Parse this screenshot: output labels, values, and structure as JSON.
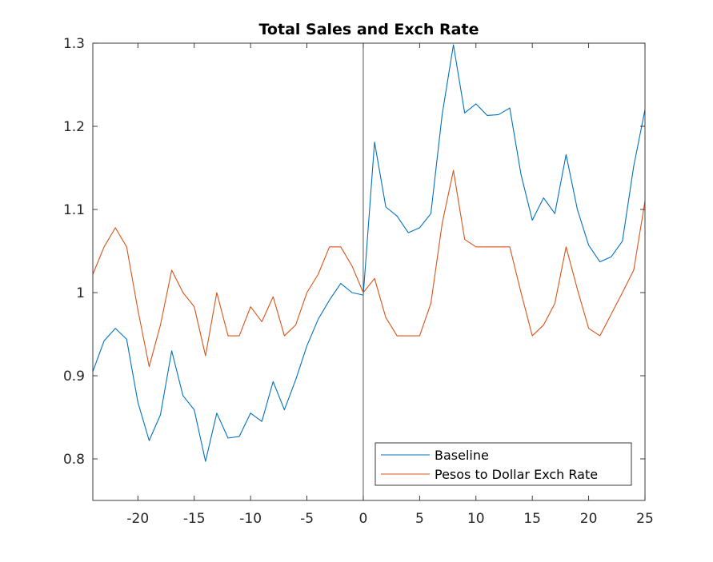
{
  "chart_data": {
    "type": "line",
    "title": "Total Sales and Exch Rate",
    "xlabel": "",
    "ylabel": "",
    "xlim": [
      -24,
      25
    ],
    "ylim": [
      0.75,
      1.3
    ],
    "xticks": [
      -20,
      -15,
      -10,
      -5,
      0,
      5,
      10,
      15,
      20,
      25
    ],
    "yticks": [
      0.8,
      0.9,
      1,
      1.1,
      1.2,
      1.3
    ],
    "xtick_labels": [
      "-20",
      "-15",
      "-10",
      "-5",
      "0",
      "5",
      "10",
      "15",
      "20",
      "25"
    ],
    "ytick_labels": [
      "0.8",
      "0.9",
      "1",
      "1.1",
      "1.2",
      "1.3"
    ],
    "grid": false,
    "vertical_reference_line_x": 0,
    "legend_position": "bottom-right",
    "x": [
      -24,
      -23,
      -22,
      -21,
      -20,
      -19,
      -18,
      -17,
      -16,
      -15,
      -14,
      -13,
      -12,
      -11,
      -10,
      -9,
      -8,
      -7,
      -6,
      -5,
      -4,
      -3,
      -2,
      -1,
      0,
      1,
      2,
      3,
      4,
      5,
      6,
      7,
      8,
      9,
      10,
      11,
      12,
      13,
      14,
      15,
      16,
      17,
      18,
      19,
      20,
      21,
      22,
      23,
      24,
      25
    ],
    "series": [
      {
        "name": "Baseline",
        "color": "#0072BD",
        "values": [
          0.905,
          0.942,
          0.957,
          0.944,
          0.868,
          0.822,
          0.853,
          0.93,
          0.876,
          0.859,
          0.797,
          0.855,
          0.825,
          0.827,
          0.855,
          0.845,
          0.893,
          0.859,
          0.895,
          0.936,
          0.968,
          0.991,
          1.011,
          1.0,
          0.997,
          1.181,
          1.103,
          1.092,
          1.072,
          1.078,
          1.095,
          1.214,
          1.298,
          1.216,
          1.227,
          1.213,
          1.214,
          1.222,
          1.142,
          1.087,
          1.114,
          1.095,
          1.166,
          1.1,
          1.057,
          1.037,
          1.043,
          1.062,
          1.152,
          1.22
        ]
      },
      {
        "name": "Pesos to Dollar Exch Rate",
        "color": "#D95319",
        "values": [
          1.022,
          1.055,
          1.078,
          1.055,
          0.979,
          0.911,
          0.961,
          1.027,
          1.0,
          0.983,
          0.924,
          1.0,
          0.948,
          0.948,
          0.983,
          0.965,
          0.995,
          0.948,
          0.961,
          1.0,
          1.022,
          1.055,
          1.055,
          1.032,
          1.0,
          1.017,
          0.97,
          0.948,
          0.948,
          0.948,
          0.987,
          1.083,
          1.147,
          1.064,
          1.055,
          1.055,
          1.055,
          1.055,
          1.0,
          0.948,
          0.961,
          0.987,
          1.055,
          1.004,
          0.957,
          0.948,
          0.974,
          1.0,
          1.027,
          1.11
        ]
      }
    ]
  }
}
